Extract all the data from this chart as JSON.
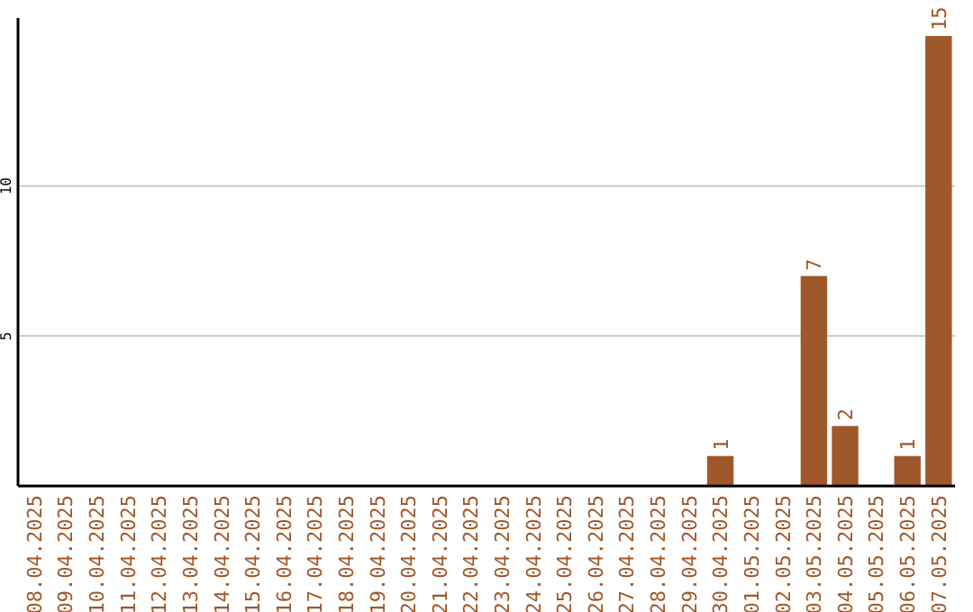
{
  "chart_data": {
    "type": "bar",
    "categories": [
      "08.04.2025",
      "09.04.2025",
      "10.04.2025",
      "11.04.2025",
      "12.04.2025",
      "13.04.2025",
      "14.04.2025",
      "15.04.2025",
      "16.04.2025",
      "17.04.2025",
      "18.04.2025",
      "19.04.2025",
      "20.04.2025",
      "21.04.2025",
      "22.04.2025",
      "23.04.2025",
      "24.04.2025",
      "25.04.2025",
      "26.04.2025",
      "27.04.2025",
      "28.04.2025",
      "29.04.2025",
      "30.04.2025",
      "01.05.2025",
      "02.05.2025",
      "03.05.2025",
      "04.05.2025",
      "05.05.2025",
      "06.05.2025",
      "07.05.2025"
    ],
    "values": [
      0,
      0,
      0,
      0,
      0,
      0,
      0,
      0,
      0,
      0,
      0,
      0,
      0,
      0,
      0,
      0,
      0,
      0,
      0,
      0,
      0,
      0,
      1,
      0,
      0,
      7,
      2,
      0,
      1,
      15
    ],
    "value_labels": [
      null,
      null,
      null,
      null,
      null,
      null,
      null,
      null,
      null,
      null,
      null,
      null,
      null,
      null,
      null,
      null,
      null,
      null,
      null,
      null,
      null,
      null,
      "1",
      null,
      null,
      "7",
      "2",
      null,
      "1",
      "15"
    ],
    "color": "#a0582a",
    "ylim": [
      0,
      15.6
    ],
    "yticks": [
      5,
      10
    ],
    "grid": "y"
  }
}
